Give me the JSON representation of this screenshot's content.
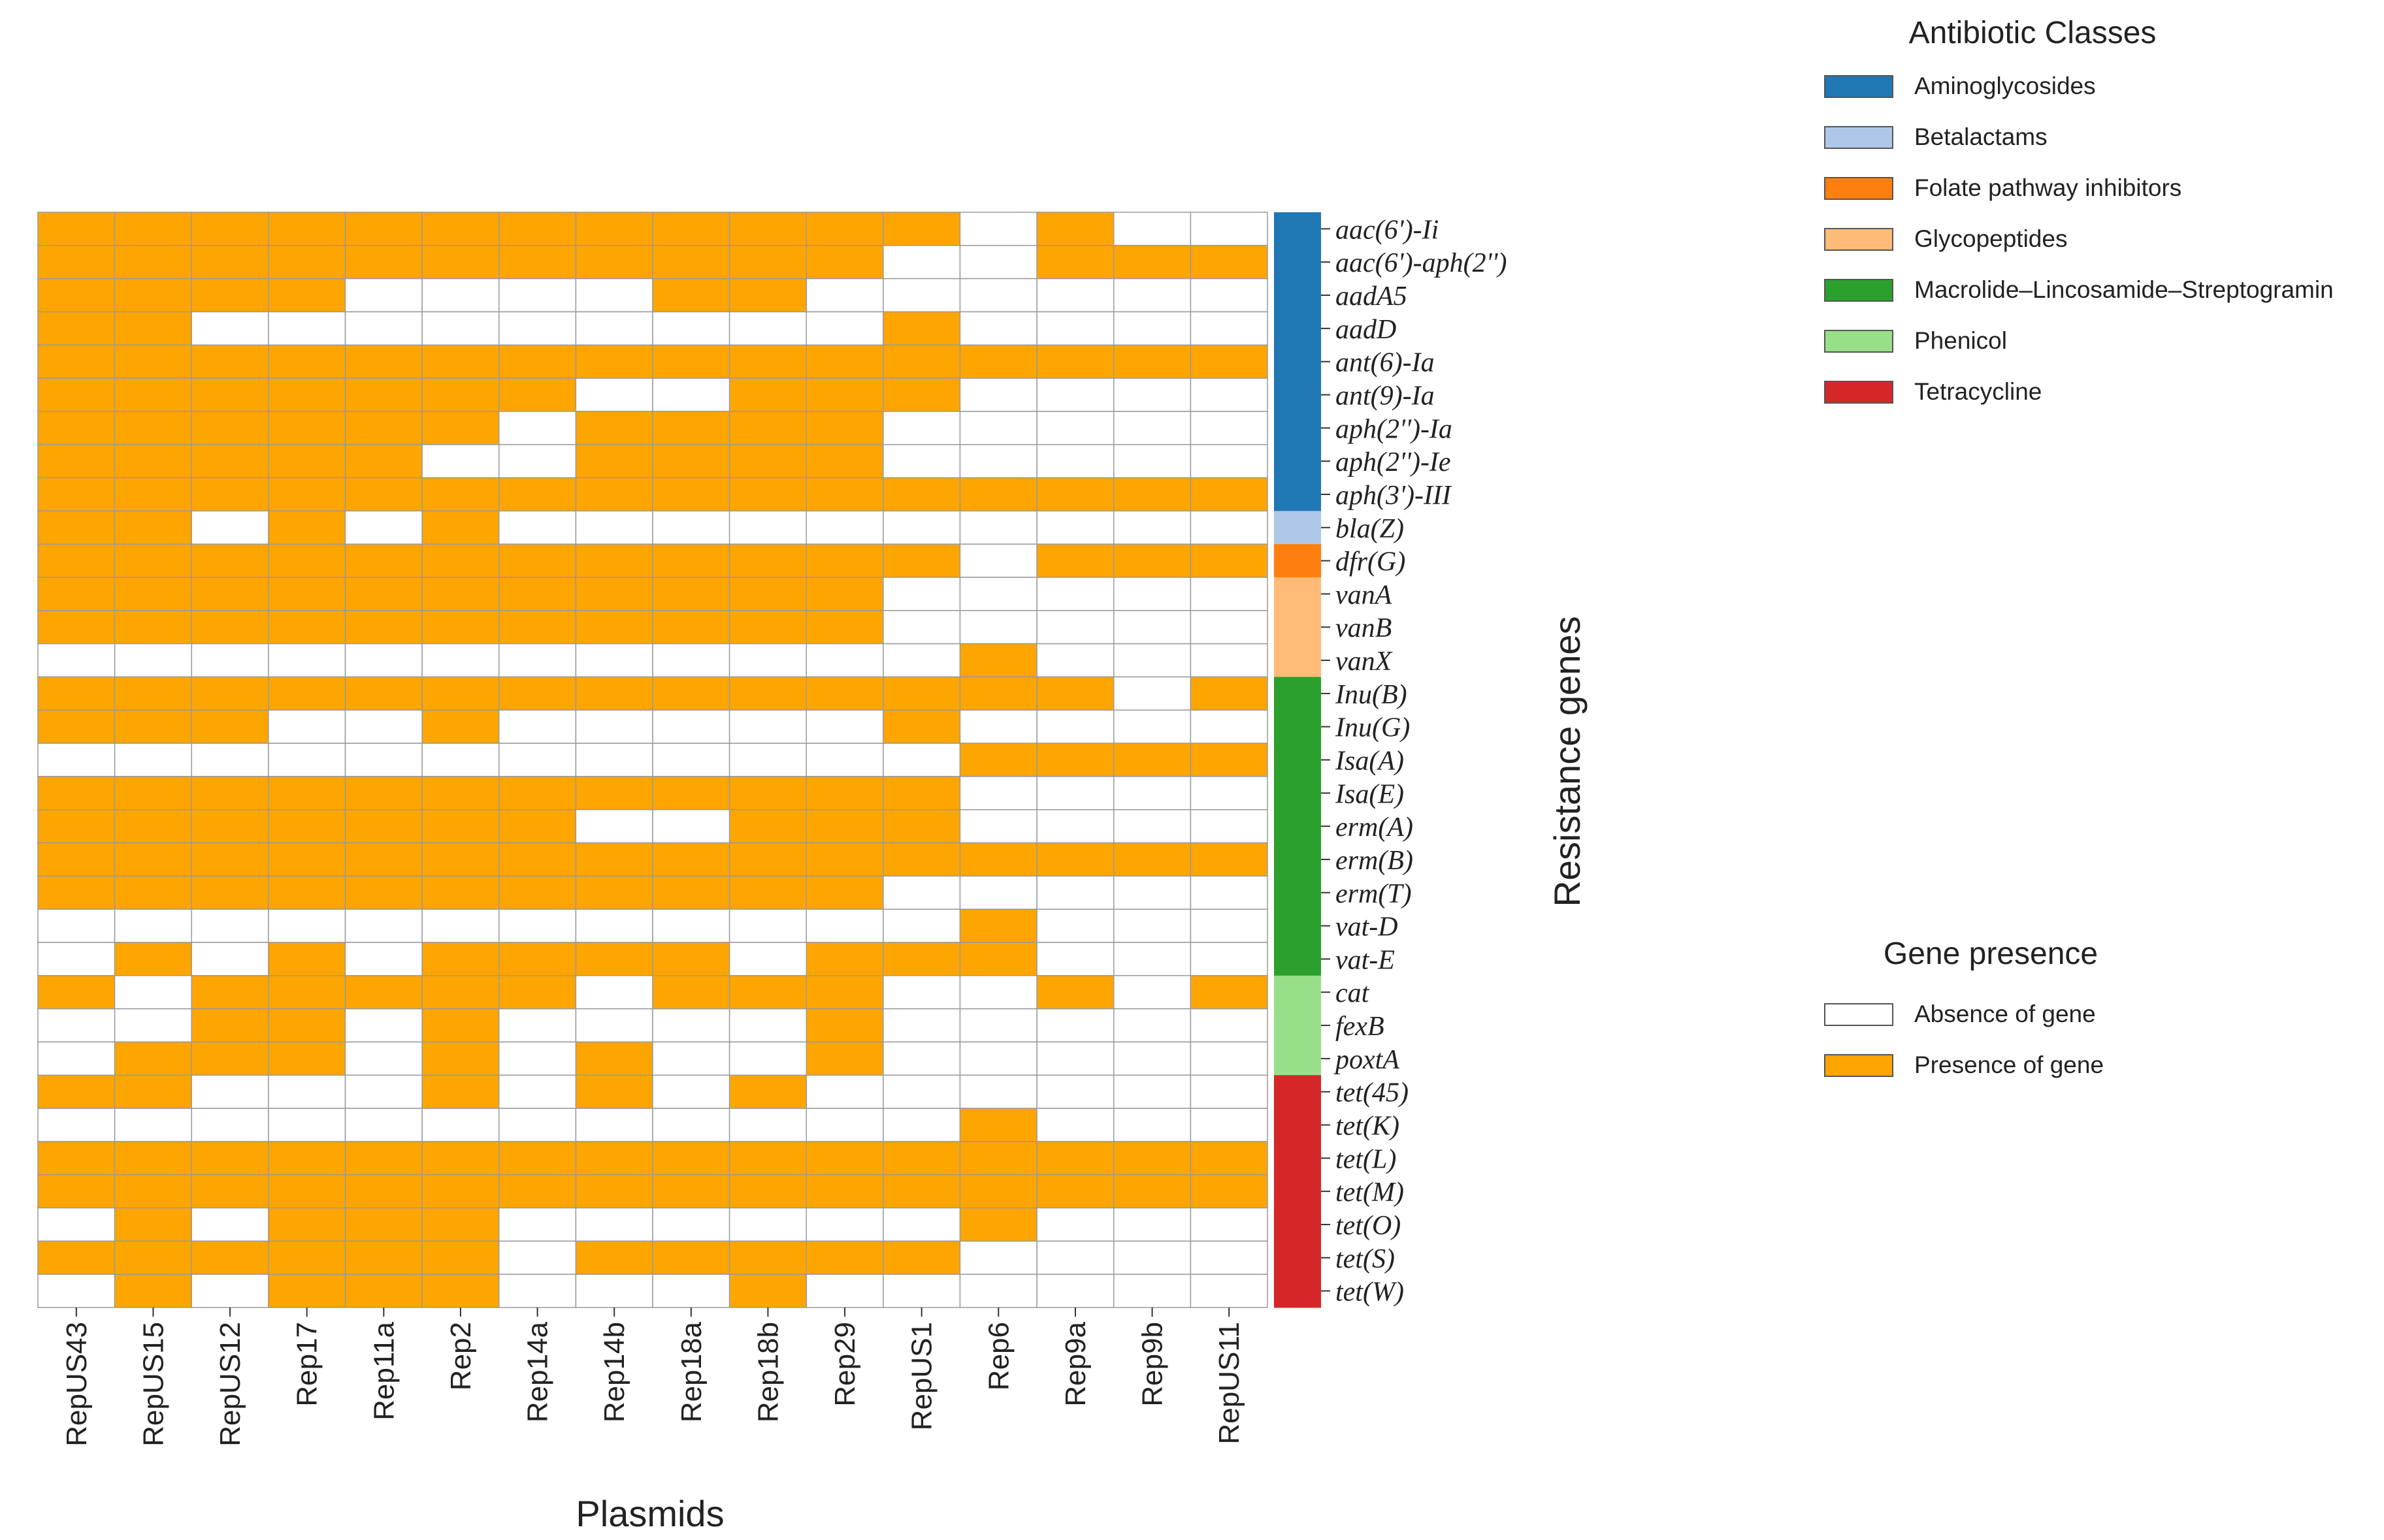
{
  "chart_data": {
    "type": "heatmap",
    "x": [
      "RepUS43",
      "RepUS15",
      "RepUS12",
      "Rep17",
      "Rep11a",
      "Rep2",
      "Rep14a",
      "Rep14b",
      "Rep18a",
      "Rep18b",
      "Rep29",
      "RepUS1",
      "Rep6",
      "Rep9a",
      "Rep9b",
      "RepUS11"
    ],
    "y": [
      "aac(6')-Ii",
      "aac(6')-aph(2'')",
      "aadA5",
      "aadD",
      "ant(6)-Ia",
      "ant(9)-Ia",
      "aph(2'')-Ia",
      "aph(2'')-Ie",
      "aph(3')-III",
      "bla(Z)",
      "dfr(G)",
      "vanA",
      "vanB",
      "vanX",
      "Inu(B)",
      "Inu(G)",
      "Isa(A)",
      "Isa(E)",
      "erm(A)",
      "erm(B)",
      "erm(T)",
      "vat-D",
      "vat-E",
      "cat",
      "fexB",
      "poxtA",
      "tet(45)",
      "tet(K)",
      "tet(L)",
      "tet(M)",
      "tet(O)",
      "tet(S)",
      "tet(W)"
    ],
    "values": [
      [
        1,
        1,
        1,
        1,
        1,
        1,
        1,
        1,
        1,
        1,
        1,
        1,
        0,
        1,
        0,
        0
      ],
      [
        1,
        1,
        1,
        1,
        1,
        1,
        1,
        1,
        1,
        1,
        1,
        0,
        0,
        1,
        1,
        1
      ],
      [
        1,
        1,
        1,
        1,
        0,
        0,
        0,
        0,
        1,
        1,
        0,
        0,
        0,
        0,
        0,
        0
      ],
      [
        1,
        1,
        0,
        0,
        0,
        0,
        0,
        0,
        0,
        0,
        0,
        1,
        0,
        0,
        0,
        0
      ],
      [
        1,
        1,
        1,
        1,
        1,
        1,
        1,
        1,
        1,
        1,
        1,
        1,
        1,
        1,
        1,
        1
      ],
      [
        1,
        1,
        1,
        1,
        1,
        1,
        1,
        0,
        0,
        1,
        1,
        1,
        0,
        0,
        0,
        0
      ],
      [
        1,
        1,
        1,
        1,
        1,
        1,
        0,
        1,
        1,
        1,
        1,
        0,
        0,
        0,
        0,
        0
      ],
      [
        1,
        1,
        1,
        1,
        1,
        0,
        0,
        1,
        1,
        1,
        1,
        0,
        0,
        0,
        0,
        0
      ],
      [
        1,
        1,
        1,
        1,
        1,
        1,
        1,
        1,
        1,
        1,
        1,
        1,
        1,
        1,
        1,
        1
      ],
      [
        1,
        1,
        0,
        1,
        0,
        1,
        0,
        0,
        0,
        0,
        0,
        0,
        0,
        0,
        0,
        0
      ],
      [
        1,
        1,
        1,
        1,
        1,
        1,
        1,
        1,
        1,
        1,
        1,
        1,
        0,
        1,
        1,
        1
      ],
      [
        1,
        1,
        1,
        1,
        1,
        1,
        1,
        1,
        1,
        1,
        1,
        0,
        0,
        0,
        0,
        0
      ],
      [
        1,
        1,
        1,
        1,
        1,
        1,
        1,
        1,
        1,
        1,
        1,
        0,
        0,
        0,
        0,
        0
      ],
      [
        0,
        0,
        0,
        0,
        0,
        0,
        0,
        0,
        0,
        0,
        0,
        0,
        1,
        0,
        0,
        0
      ],
      [
        1,
        1,
        1,
        1,
        1,
        1,
        1,
        1,
        1,
        1,
        1,
        1,
        1,
        1,
        0,
        1
      ],
      [
        1,
        1,
        1,
        0,
        0,
        1,
        0,
        0,
        0,
        0,
        0,
        1,
        0,
        0,
        0,
        0
      ],
      [
        0,
        0,
        0,
        0,
        0,
        0,
        0,
        0,
        0,
        0,
        0,
        0,
        1,
        1,
        1,
        1
      ],
      [
        1,
        1,
        1,
        1,
        1,
        1,
        1,
        1,
        1,
        1,
        1,
        1,
        0,
        0,
        0,
        0
      ],
      [
        1,
        1,
        1,
        1,
        1,
        1,
        1,
        0,
        0,
        1,
        1,
        1,
        0,
        0,
        0,
        0
      ],
      [
        1,
        1,
        1,
        1,
        1,
        1,
        1,
        1,
        1,
        1,
        1,
        1,
        1,
        1,
        1,
        1
      ],
      [
        1,
        1,
        1,
        1,
        1,
        1,
        1,
        1,
        1,
        1,
        1,
        0,
        0,
        0,
        0,
        0
      ],
      [
        0,
        0,
        0,
        0,
        0,
        0,
        0,
        0,
        0,
        0,
        0,
        0,
        1,
        0,
        0,
        0
      ],
      [
        0,
        1,
        0,
        1,
        0,
        1,
        1,
        1,
        1,
        0,
        1,
        1,
        1,
        0,
        0,
        0
      ],
      [
        1,
        0,
        1,
        1,
        1,
        1,
        1,
        0,
        1,
        1,
        1,
        0,
        0,
        1,
        0,
        1
      ],
      [
        0,
        0,
        1,
        1,
        0,
        1,
        0,
        0,
        0,
        0,
        1,
        0,
        0,
        0,
        0,
        0
      ],
      [
        0,
        1,
        1,
        1,
        0,
        1,
        0,
        1,
        0,
        0,
        1,
        0,
        0,
        0,
        0,
        0
      ],
      [
        1,
        1,
        0,
        0,
        0,
        1,
        0,
        1,
        0,
        1,
        0,
        0,
        0,
        0,
        0,
        0
      ],
      [
        0,
        0,
        0,
        0,
        0,
        0,
        0,
        0,
        0,
        0,
        0,
        0,
        1,
        0,
        0,
        0
      ],
      [
        1,
        1,
        1,
        1,
        1,
        1,
        1,
        1,
        1,
        1,
        1,
        1,
        1,
        1,
        1,
        1
      ],
      [
        1,
        1,
        1,
        1,
        1,
        1,
        1,
        1,
        1,
        1,
        1,
        1,
        1,
        1,
        1,
        1
      ],
      [
        0,
        1,
        0,
        1,
        1,
        1,
        0,
        0,
        0,
        0,
        0,
        0,
        1,
        0,
        0,
        0
      ],
      [
        1,
        1,
        1,
        1,
        1,
        1,
        0,
        1,
        1,
        1,
        1,
        1,
        0,
        0,
        0,
        0
      ],
      [
        0,
        1,
        0,
        1,
        1,
        1,
        0,
        0,
        0,
        1,
        0,
        0,
        0,
        0,
        0,
        0
      ]
    ],
    "row_classes": [
      "Aminoglycosides",
      "Aminoglycosides",
      "Aminoglycosides",
      "Aminoglycosides",
      "Aminoglycosides",
      "Aminoglycosides",
      "Aminoglycosides",
      "Aminoglycosides",
      "Aminoglycosides",
      "Betalactams",
      "Folate pathway inhibitors",
      "Glycopeptides",
      "Glycopeptides",
      "Glycopeptides",
      "Macrolide–Lincosamide–Streptogramin",
      "Macrolide–Lincosamide–Streptogramin",
      "Macrolide–Lincosamide–Streptogramin",
      "Macrolide–Lincosamide–Streptogramin",
      "Macrolide–Lincosamide–Streptogramin",
      "Macrolide–Lincosamide–Streptogramin",
      "Macrolide–Lincosamide–Streptogramin",
      "Macrolide–Lincosamide–Streptogramin",
      "Macrolide–Lincosamide–Streptogramin",
      "Phenicol",
      "Phenicol",
      "Phenicol",
      "Tetracycline",
      "Tetracycline",
      "Tetracycline",
      "Tetracycline",
      "Tetracycline",
      "Tetracycline",
      "Tetracycline"
    ],
    "xlabel": "Plasmids",
    "ylabel": "Resistance genes",
    "presence_colors": {
      "absent": "#ffffff",
      "present": "#ffa500"
    },
    "class_legend": {
      "title": "Antibiotic Classes",
      "items": [
        {
          "label": "Aminoglycosides",
          "color": "#1f77b4"
        },
        {
          "label": "Betalactams",
          "color": "#aec7e8"
        },
        {
          "label": "Folate pathway inhibitors",
          "color": "#ff7f0e"
        },
        {
          "label": "Glycopeptides",
          "color": "#ffbb78"
        },
        {
          "label": "Macrolide–Lincosamide–Streptogramin",
          "color": "#2ca02c"
        },
        {
          "label": "Phenicol",
          "color": "#98df8a"
        },
        {
          "label": "Tetracycline",
          "color": "#d62728"
        }
      ]
    },
    "presence_legend": {
      "title": "Gene presence",
      "items": [
        {
          "label": "Absence of gene",
          "color": "#ffffff"
        },
        {
          "label": "Presence of gene",
          "color": "#ffa500"
        }
      ]
    }
  }
}
